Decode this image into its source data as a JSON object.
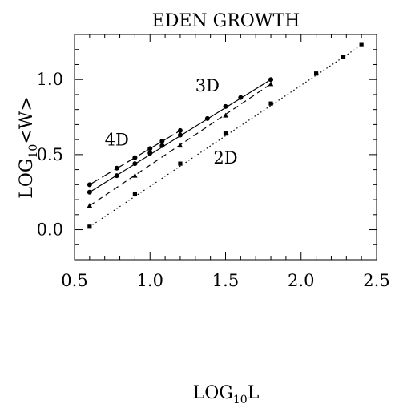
{
  "chart_data": {
    "type": "line",
    "title": "EDEN GROWTH",
    "xlabel": {
      "base": "LOG",
      "sub": "10",
      "rest": "L"
    },
    "ylabel": {
      "base": "LOG",
      "sub": "10",
      "rest": "<W>"
    },
    "xlim": [
      0.5,
      2.5
    ],
    "ylim": [
      -0.2,
      1.3
    ],
    "xticks": [
      0.5,
      1.0,
      1.5,
      2.0,
      2.5
    ],
    "xtick_labels": [
      "0.5",
      "1.0",
      "1.5",
      "2.0",
      "2.5"
    ],
    "yticks": [
      0.0,
      0.5,
      1.0
    ],
    "ytick_labels": [
      "0.0",
      "0.5",
      "1.0"
    ],
    "grid": false,
    "legend": "none",
    "series": [
      {
        "name": "4D",
        "marker": "circle",
        "line_style": "long-dash",
        "fit": [
          [
            0.6,
            0.3
          ],
          [
            1.2,
            0.66
          ]
        ],
        "x": [
          0.6,
          0.78,
          0.9,
          1.0,
          1.08,
          1.2
        ],
        "y": [
          0.3,
          0.41,
          0.48,
          0.54,
          0.59,
          0.66
        ]
      },
      {
        "name": "3D",
        "marker": "circle",
        "line_style": "solid",
        "fit": [
          [
            0.6,
            0.25
          ],
          [
            1.8,
            1.0
          ]
        ],
        "x": [
          0.6,
          0.78,
          0.9,
          1.0,
          1.08,
          1.2,
          1.38,
          1.5,
          1.6,
          1.8
        ],
        "y": [
          0.25,
          0.36,
          0.44,
          0.51,
          0.56,
          0.63,
          0.74,
          0.82,
          0.88,
          1.0
        ]
      },
      {
        "name": "",
        "marker": "triangle",
        "line_style": "dashed",
        "fit": [
          [
            0.6,
            0.16
          ],
          [
            1.8,
            0.97
          ]
        ],
        "x": [
          0.6,
          0.9,
          1.2,
          1.5,
          1.8
        ],
        "y": [
          0.16,
          0.36,
          0.56,
          0.76,
          0.97
        ]
      },
      {
        "name": "2D",
        "marker": "square",
        "line_style": "dotted",
        "fit": [
          [
            0.6,
            0.02
          ],
          [
            2.4,
            1.23
          ]
        ],
        "x": [
          0.6,
          0.9,
          1.2,
          1.5,
          1.8,
          2.1,
          2.28,
          2.4
        ],
        "y": [
          0.02,
          0.24,
          0.44,
          0.64,
          0.84,
          1.04,
          1.15,
          1.23
        ]
      }
    ],
    "annotations": [
      {
        "text": "4D",
        "x": 0.78,
        "y": 0.56
      },
      {
        "text": "3D",
        "x": 1.38,
        "y": 0.92
      },
      {
        "text": "2D",
        "x": 1.5,
        "y": 0.44
      }
    ]
  }
}
